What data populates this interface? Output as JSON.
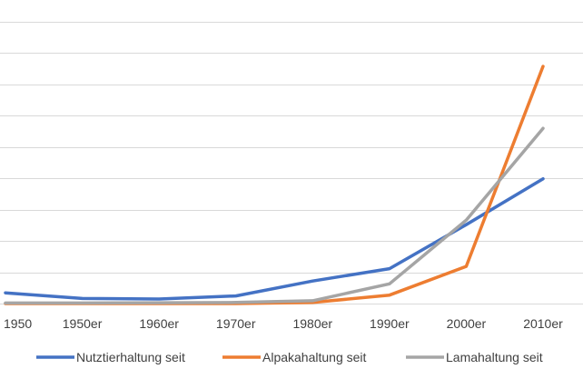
{
  "chart_data": {
    "type": "line",
    "title": "",
    "xlabel": "",
    "ylabel": "",
    "categories": [
      "1950",
      "1950er",
      "1960er",
      "1970er",
      "1980er",
      "1990er",
      "2000er",
      "2010er"
    ],
    "ylim": [
      0,
      100
    ],
    "grid": true,
    "legend_position": "bottom",
    "series": [
      {
        "name": "Nutztierhaltung seit",
        "color": "#4472c4",
        "values": [
          3.8,
          1.8,
          1.6,
          2.7,
          8,
          12.4,
          28,
          44.3
        ]
      },
      {
        "name": "Alpakahaltung seit",
        "color": "#ed7d31",
        "values": [
          0,
          0,
          0,
          0,
          0.4,
          3,
          13.2,
          84.2
        ]
      },
      {
        "name": "Lamahaltung seit",
        "color": "#a5a5a5",
        "values": [
          0.2,
          0.2,
          0.3,
          0.4,
          1,
          7,
          29.6,
          62.2
        ]
      }
    ]
  }
}
